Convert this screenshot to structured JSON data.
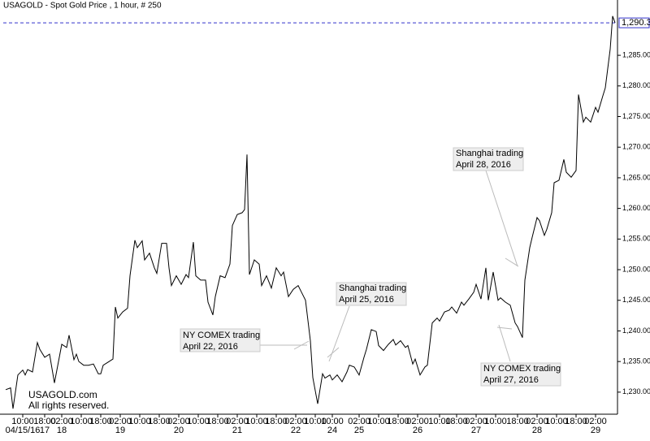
{
  "chart_data": {
    "type": "line",
    "title": "USAGOLD - Spot Gold Price , 1 hour, # 250",
    "watermark": [
      "USAGOLD.com",
      "All rights reserved."
    ],
    "color": "#000000",
    "x": [
      1,
      3,
      4,
      6,
      8,
      9,
      10,
      12,
      14,
      15,
      17,
      19,
      21,
      23,
      24,
      26,
      27,
      29,
      30,
      31,
      33,
      35,
      37,
      39,
      40,
      41,
      43,
      45,
      46,
      47,
      49,
      51,
      52,
      54,
      55,
      57,
      58,
      60,
      62,
      63,
      65,
      67,
      68,
      69,
      71,
      73,
      75,
      76,
      78,
      79,
      81,
      83,
      84,
      86,
      87,
      89,
      91,
      93,
      94,
      96,
      98,
      99,
      100,
      101,
      103,
      105,
      106,
      108,
      110,
      112,
      114,
      115,
      117,
      119,
      121,
      122,
      124,
      126,
      127,
      129,
      131,
      132,
      134,
      135,
      137,
      139,
      141,
      142,
      144,
      146,
      148,
      149,
      151,
      153,
      154,
      156,
      158,
      160,
      161,
      163,
      165,
      166,
      168,
      169,
      171,
      173,
      174,
      176,
      178,
      179,
      181,
      183,
      184,
      186,
      188,
      189,
      191,
      193,
      194,
      196,
      198,
      199,
      201,
      203,
      204,
      206,
      208,
      210,
      211,
      213,
      214,
      216,
      217,
      219,
      220,
      222,
      223,
      225,
      226,
      228,
      230,
      231,
      233,
      235,
      236,
      238,
      239,
      241,
      243,
      244,
      246,
      247,
      249,
      250,
      251
    ],
    "values": [
      1230.4,
      1230.7,
      1227.3,
      1232.8,
      1233.6,
      1232.8,
      1233.7,
      1233.3,
      1238.1,
      1237.0,
      1235.7,
      1236.2,
      1231.5,
      1235.7,
      1237.8,
      1237.3,
      1239.3,
      1235.3,
      1236.2,
      1235.0,
      1234.4,
      1234.4,
      1234.6,
      1233.0,
      1233.0,
      1234.4,
      1234.9,
      1235.4,
      1243.9,
      1242.1,
      1243.1,
      1243.7,
      1249.0,
      1254.8,
      1253.6,
      1254.7,
      1251.6,
      1252.7,
      1250.3,
      1249.4,
      1254.3,
      1254.3,
      1250.3,
      1247.4,
      1249.0,
      1247.6,
      1249.2,
      1248.7,
      1254.5,
      1249.0,
      1248.3,
      1248.3,
      1244.7,
      1242.6,
      1245.6,
      1249.0,
      1248.7,
      1250.9,
      1257.2,
      1259.0,
      1259.3,
      1259.8,
      1268.8,
      1249.2,
      1251.6,
      1250.9,
      1247.4,
      1249.0,
      1247.0,
      1250.3,
      1249.0,
      1249.6,
      1245.6,
      1246.8,
      1247.4,
      1246.6,
      1245.0,
      1238.4,
      1232.4,
      1228.1,
      1233.0,
      1232.3,
      1232.8,
      1232.0,
      1232.8,
      1231.7,
      1233.3,
      1234.4,
      1234.1,
      1232.8,
      1235.7,
      1237.0,
      1240.2,
      1239.9,
      1237.6,
      1236.8,
      1237.8,
      1238.6,
      1237.7,
      1238.4,
      1237.3,
      1237.6,
      1234.6,
      1235.4,
      1232.8,
      1234.1,
      1234.4,
      1241.3,
      1242.1,
      1241.6,
      1243.1,
      1243.4,
      1243.9,
      1242.9,
      1244.7,
      1244.2,
      1245.2,
      1246.3,
      1247.6,
      1245.2,
      1250.3,
      1245.0,
      1249.6,
      1245.0,
      1245.4,
      1244.7,
      1244.2,
      1241.3,
      1240.7,
      1238.9,
      1248.3,
      1253.6,
      1255.3,
      1258.5,
      1258.0,
      1255.6,
      1256.6,
      1259.3,
      1264.2,
      1264.6,
      1268.0,
      1265.9,
      1265.1,
      1266.2,
      1278.6,
      1274.1,
      1274.9,
      1274.1,
      1276.5,
      1275.7,
      1278.4,
      1279.7,
      1286.0,
      1291.4,
      1290.3
    ],
    "xlim": [
      0,
      252
    ],
    "ylim": [
      1226.4,
      1293.5
    ],
    "yticks": [
      {
        "value": 1230,
        "label": "1,230.00"
      },
      {
        "value": 1235,
        "label": "1,235.00"
      },
      {
        "value": 1240,
        "label": "1,240.00"
      },
      {
        "value": 1245,
        "label": "1,245.00"
      },
      {
        "value": 1250,
        "label": "1,250.00"
      },
      {
        "value": 1255,
        "label": "1,255.00"
      },
      {
        "value": 1260,
        "label": "1,260.00"
      },
      {
        "value": 1265,
        "label": "1,265.00"
      },
      {
        "value": 1270,
        "label": "1,270.00"
      },
      {
        "value": 1275,
        "label": "1,275.00"
      },
      {
        "value": 1280,
        "label": "1,280.00"
      },
      {
        "value": 1285,
        "label": "1,285.00"
      }
    ],
    "last_price": {
      "value": 1290.3,
      "label": "1,290.30",
      "color": "#3333cc"
    },
    "xticks": [
      {
        "value": 8,
        "label": "10:00"
      },
      {
        "value": 17,
        "label": "18:00"
      },
      {
        "value": 24,
        "label": "02:00"
      },
      {
        "value": 32,
        "label": "10:00"
      },
      {
        "value": 40,
        "label": "18:00"
      },
      {
        "value": 48,
        "label": "02:00"
      },
      {
        "value": 56,
        "label": "10:00"
      },
      {
        "value": 64,
        "label": "18:00"
      },
      {
        "value": 72,
        "label": "02:00"
      },
      {
        "value": 80,
        "label": "10:00"
      },
      {
        "value": 88,
        "label": "18:00"
      },
      {
        "value": 96,
        "label": "02:00"
      },
      {
        "value": 104,
        "label": "10:00"
      },
      {
        "value": 112,
        "label": "18:00"
      },
      {
        "value": 120,
        "label": "02:00"
      },
      {
        "value": 128,
        "label": "10:00"
      },
      {
        "value": 135,
        "label": "10:00"
      },
      {
        "value": 146,
        "label": "02:00"
      },
      {
        "value": 154,
        "label": "10:00"
      },
      {
        "value": 162,
        "label": "18:00"
      },
      {
        "value": 170,
        "label": "02:00"
      },
      {
        "value": 179,
        "label": "10:00"
      },
      {
        "value": 186,
        "label": "18:00"
      },
      {
        "value": 194,
        "label": "02:00"
      },
      {
        "value": 202,
        "label": "10:00"
      },
      {
        "value": 211,
        "label": "18:00"
      },
      {
        "value": 219,
        "label": "02:00"
      },
      {
        "value": 227,
        "label": "10:00"
      },
      {
        "value": 235,
        "label": "18:00"
      },
      {
        "value": 243,
        "label": "02:00"
      }
    ],
    "xdates": [
      {
        "value": 8,
        "label": "04/15/16"
      },
      {
        "value": 17,
        "label": "17"
      },
      {
        "value": 24,
        "label": "18"
      },
      {
        "value": 48,
        "label": "19"
      },
      {
        "value": 72,
        "label": "20"
      },
      {
        "value": 96,
        "label": "21"
      },
      {
        "value": 120,
        "label": "22"
      },
      {
        "value": 135,
        "label": "24"
      },
      {
        "value": 146,
        "label": "25"
      },
      {
        "value": 170,
        "label": "26"
      },
      {
        "value": 194,
        "label": "27"
      },
      {
        "value": 219,
        "label": "28"
      },
      {
        "value": 243,
        "label": "29"
      }
    ],
    "annotations": [
      [
        "NY COMEX trading",
        "April 22, 2016"
      ],
      [
        "Shanghai trading",
        "April 25, 2016"
      ],
      [
        "Shanghai trading",
        "April 28, 2016"
      ],
      [
        "NY COMEX trading",
        "April 27, 2016"
      ]
    ]
  }
}
